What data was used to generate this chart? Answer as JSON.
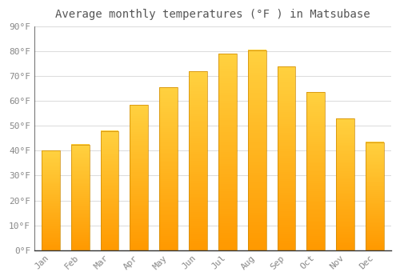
{
  "months": [
    "Jan",
    "Feb",
    "Mar",
    "Apr",
    "May",
    "Jun",
    "Jul",
    "Aug",
    "Sep",
    "Oct",
    "Nov",
    "Dec"
  ],
  "temperatures": [
    40,
    42.5,
    48,
    58.5,
    65.5,
    72,
    79,
    80.5,
    74,
    63.5,
    53,
    43.5
  ],
  "title": "Average monthly temperatures (°F ) in Matsubase",
  "ylim": [
    0,
    90
  ],
  "yticks": [
    0,
    10,
    20,
    30,
    40,
    50,
    60,
    70,
    80,
    90
  ],
  "ytick_labels": [
    "0°F",
    "10°F",
    "20°F",
    "30°F",
    "40°F",
    "50°F",
    "60°F",
    "70°F",
    "80°F",
    "90°F"
  ],
  "bar_color_top": "#FFAA00",
  "bar_color_bottom": "#FFC84A",
  "bar_edge_color": "#CC8800",
  "background_color": "#FFFFFF",
  "plot_bg_color": "#FFFFFF",
  "grid_color": "#DDDDDD",
  "title_fontsize": 10,
  "tick_fontsize": 8,
  "title_color": "#555555",
  "tick_color": "#888888"
}
